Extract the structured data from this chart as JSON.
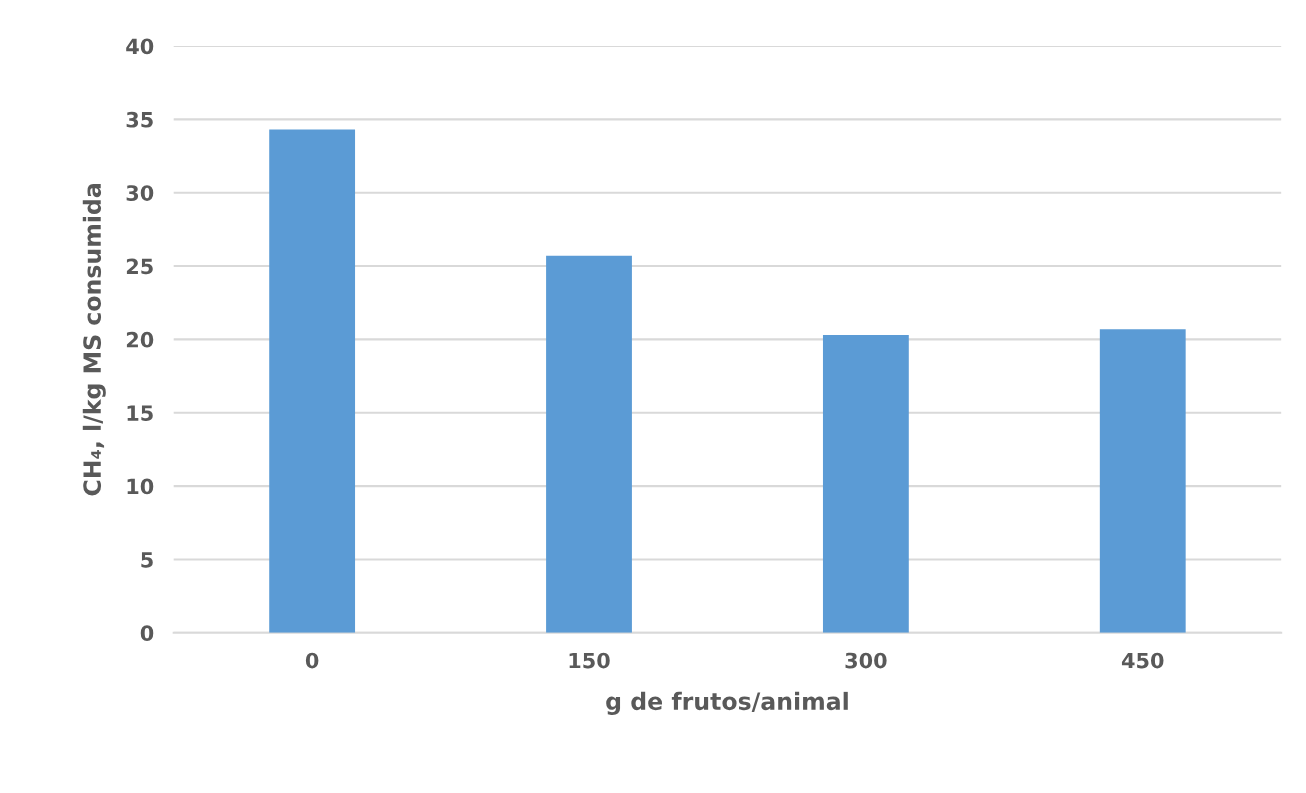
{
  "chart_data": {
    "type": "bar",
    "xlabel": "g de frutos/animal",
    "ylabel": "CH₄, l/kg MS consumida",
    "categories": [
      "0",
      "150",
      "300",
      "450"
    ],
    "values": [
      34.3,
      25.7,
      20.3,
      20.7
    ],
    "color": "#5b9bd5",
    "ylim": [
      0,
      40
    ],
    "yticks": [
      0,
      5,
      10,
      15,
      20,
      25,
      30,
      35,
      40
    ],
    "grid": "y"
  }
}
